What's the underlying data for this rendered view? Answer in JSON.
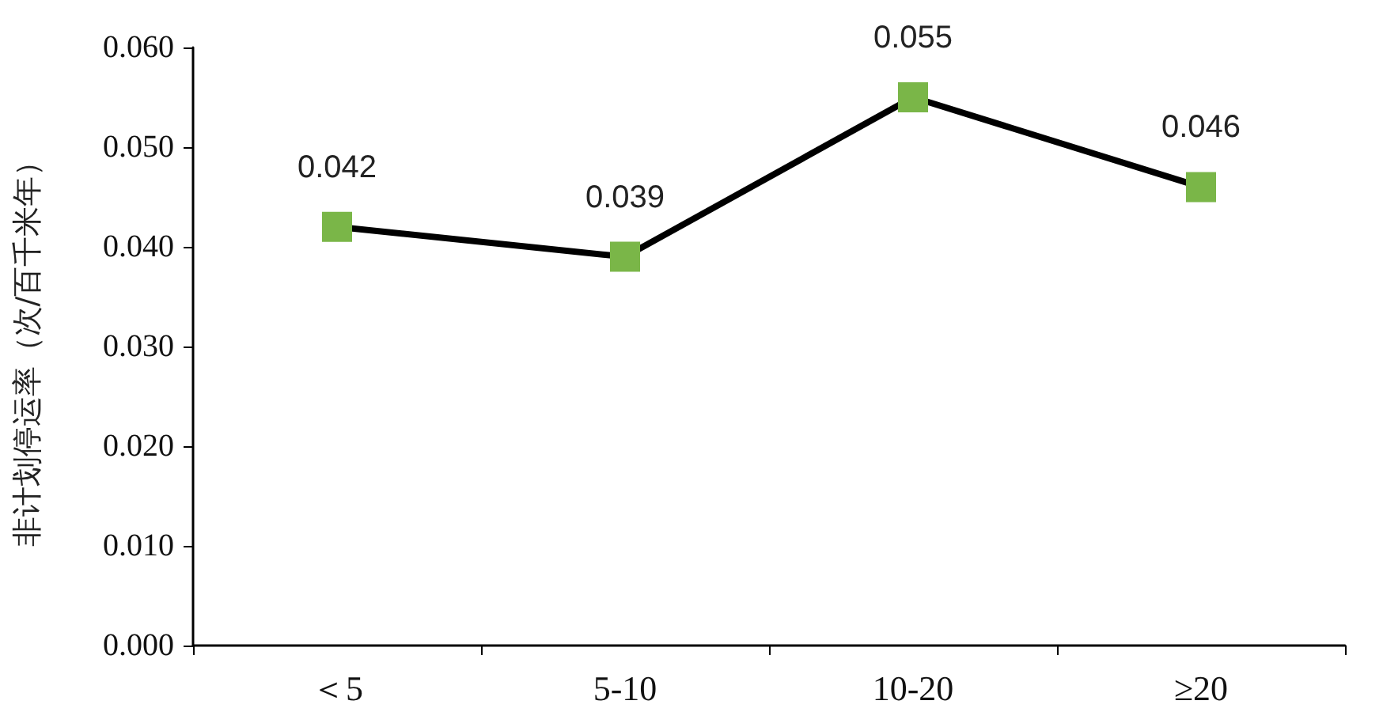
{
  "chart_data": {
    "type": "line",
    "ylabel": "非计划停运率（次/百千米年）",
    "categories": [
      "＜5",
      "5-10",
      "10-20",
      "≥20"
    ],
    "series": [
      {
        "color": "#7ab648",
        "values": [
          0.042,
          0.039,
          0.055,
          0.046
        ]
      }
    ],
    "marker": "square",
    "line_style": "solid",
    "data_labels": true,
    "ylim": [
      0,
      0.06
    ],
    "yticks": [
      {
        "value": 0,
        "label": "0.000"
      },
      {
        "value": 0.01,
        "label": "0.010"
      },
      {
        "value": 0.02,
        "label": "0.020"
      },
      {
        "value": 0.03,
        "label": "0.030"
      },
      {
        "value": 0.04,
        "label": "0.040"
      },
      {
        "value": 0.05,
        "label": "0.050"
      },
      {
        "value": 0.06,
        "label": "0.060"
      }
    ]
  }
}
